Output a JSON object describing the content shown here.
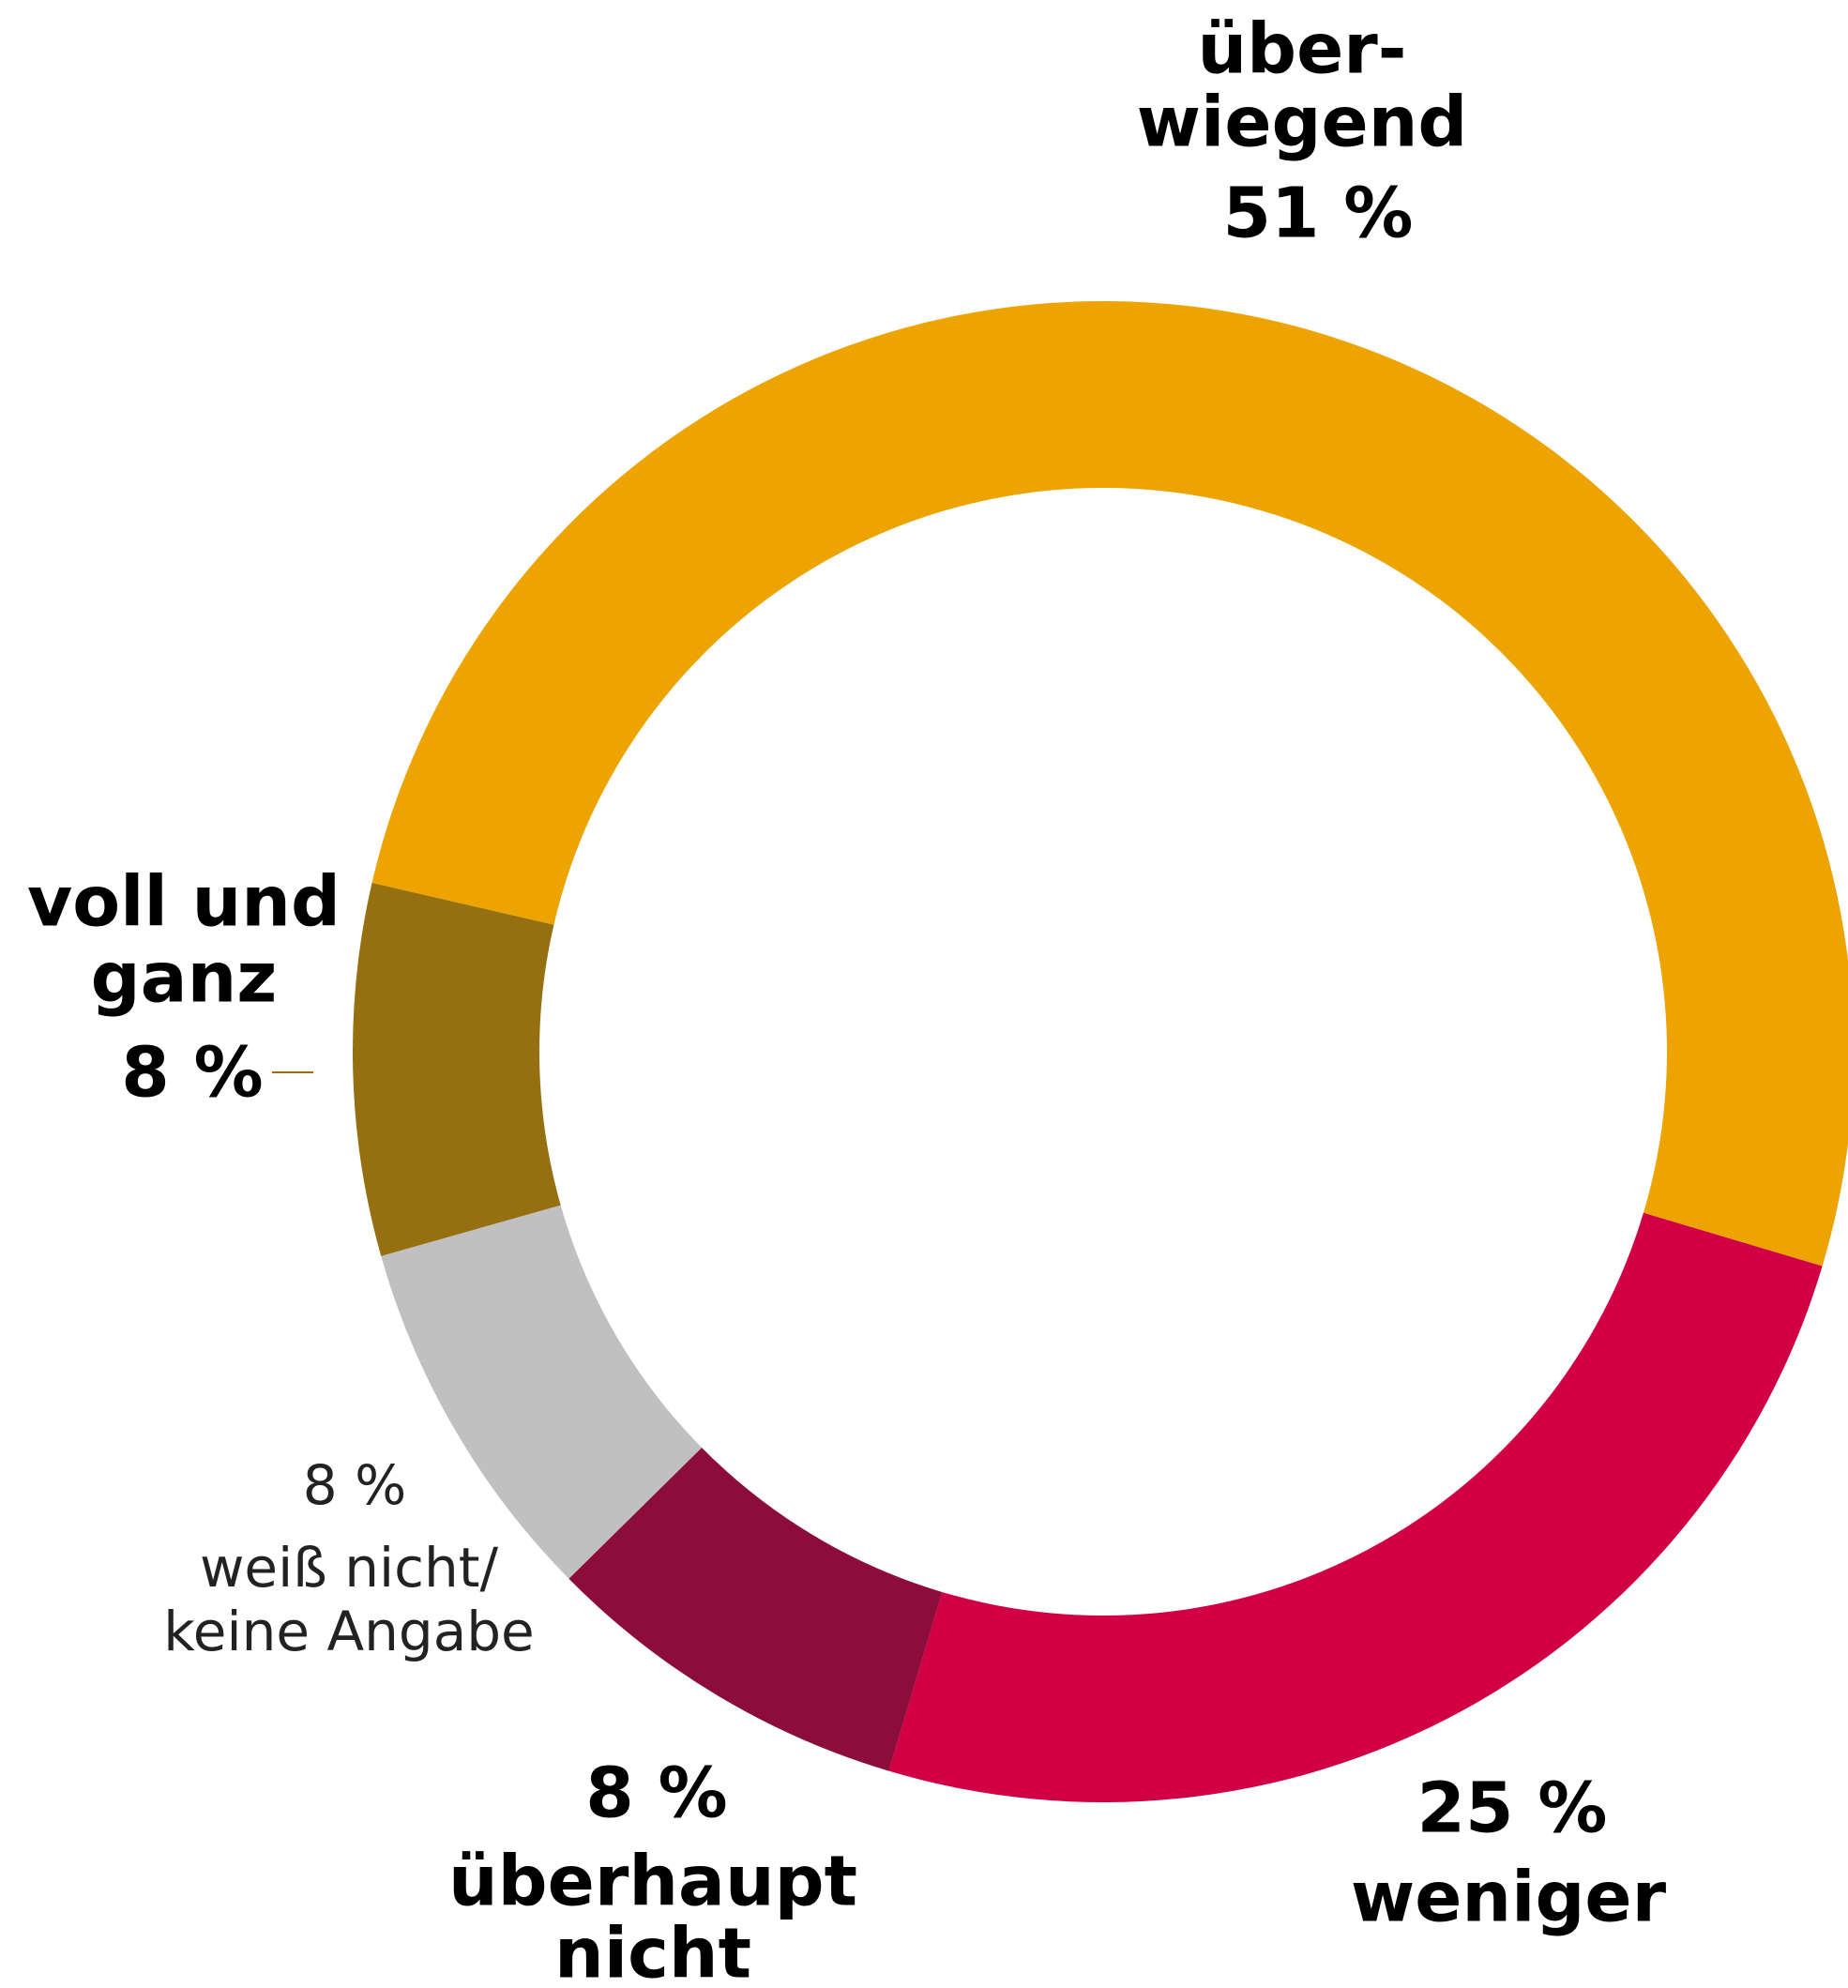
{
  "chart_data": {
    "type": "donut",
    "categories": [
      [
        "über-",
        "wiegend"
      ],
      [
        "weniger"
      ],
      [
        "überhaupt",
        "nicht"
      ],
      [
        "weiß nicht/",
        "keine Angabe"
      ],
      [
        "voll und",
        "ganz"
      ]
    ],
    "values": [
      51,
      25,
      8,
      8,
      8
    ],
    "value_labels": [
      "51 %",
      "25 %",
      "8 %",
      "8 %",
      "8 %"
    ],
    "colors": [
      "#eea400",
      "#d10045",
      "#8c0d3c",
      "#c0c0c0",
      "#966f10"
    ]
  }
}
